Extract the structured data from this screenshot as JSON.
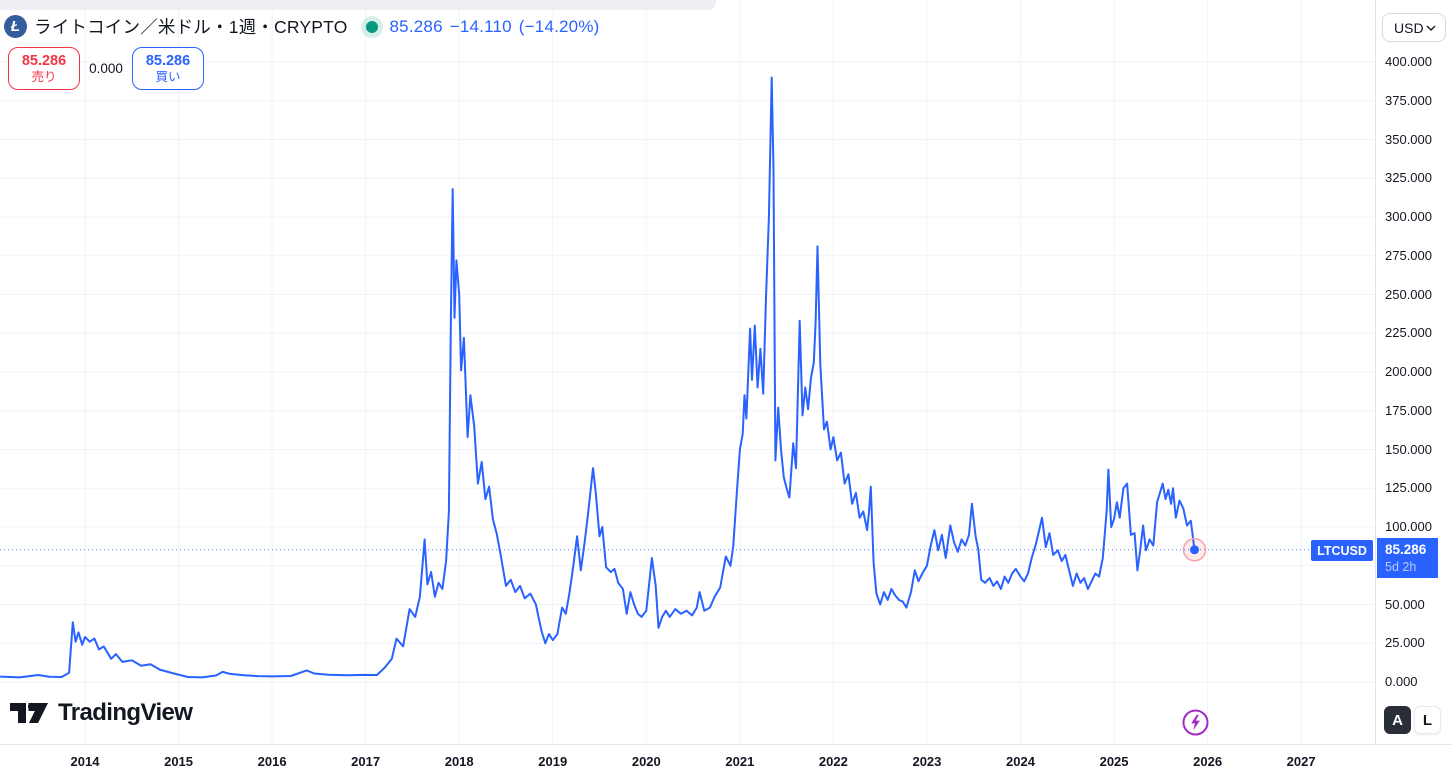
{
  "header": {
    "symbol_title": "ライトコイン／米ドル・1週・CRYPTO",
    "market_status": "open",
    "last_price": "85.286",
    "change": "−14.110",
    "change_pct": "(−14.20%)",
    "sell": {
      "price": "85.286",
      "label": "売り"
    },
    "spread": "0.000",
    "buy": {
      "price": "85.286",
      "label": "買い"
    }
  },
  "price_axis": {
    "currency": "USD",
    "tick_labels": [
      "400.000",
      "375.000",
      "350.000",
      "325.000",
      "300.000",
      "275.000",
      "250.000",
      "225.000",
      "200.000",
      "175.000",
      "150.000",
      "125.000",
      "100.000",
      "50.000",
      "25.000",
      "0.000"
    ],
    "tick_values": [
      400,
      375,
      350,
      325,
      300,
      275,
      250,
      225,
      200,
      175,
      150,
      125,
      100,
      50,
      25,
      0
    ],
    "badge": {
      "price": "85.286",
      "countdown": "5d 2h"
    },
    "auto_label": "A",
    "log_label": "L"
  },
  "time_axis": {
    "years": [
      2014,
      2015,
      2016,
      2017,
      2018,
      2019,
      2020,
      2021,
      2022,
      2023,
      2024,
      2025,
      2026,
      2027
    ]
  },
  "price_line": {
    "label": "LTCUSD"
  },
  "branding": {
    "logo_text": "TradingView",
    "coin_glyph": "Ł"
  },
  "icons": {
    "currency_selector": "chevron-down-icon",
    "market_status": "green-dot",
    "bottom_right": "lightning-icon",
    "axis_corner": "gear-icon",
    "coin": "litecoin-icon"
  },
  "colors": {
    "line": "#2962FF",
    "accent_blue": "#2962FF",
    "sell_red": "#F23645",
    "status_green": "#089981",
    "grid": "#F0F3FA",
    "axis_text": "#131722",
    "separator": "#E0E3EB",
    "lightning_purple": "#A02BC4",
    "litecoin_bg": "#345D9D",
    "marker_halo_stroke": "#F5A3AB"
  },
  "chart_data": {
    "type": "line",
    "title": "ライトコイン／米ドル・1週・CRYPTO",
    "symbol": "LTCUSD",
    "exchange": "CRYPTO",
    "interval": "1週",
    "currency": "USD",
    "current_price": 85.286,
    "change": -14.11,
    "change_pct": -14.2,
    "countdown": "5d 2h",
    "ylim": [
      0,
      412
    ],
    "xlim": [
      2013.09,
      2027.79
    ],
    "y_gridlines": [
      0,
      25,
      50,
      75,
      100,
      125,
      150,
      175,
      200,
      225,
      250,
      275,
      300,
      325,
      350,
      375,
      400
    ],
    "grid": true,
    "legend_position": "top-left",
    "series": [
      {
        "name": "LTCUSD weekly close",
        "points": [
          [
            2013.1,
            3.5
          ],
          [
            2013.3,
            3.0
          ],
          [
            2013.5,
            4.5
          ],
          [
            2013.62,
            3.4
          ],
          [
            2013.75,
            3.2
          ],
          [
            2013.83,
            6.0
          ],
          [
            2013.87,
            38.5
          ],
          [
            2013.9,
            26.0
          ],
          [
            2013.93,
            32.0
          ],
          [
            2013.97,
            24.0
          ],
          [
            2014.0,
            29.0
          ],
          [
            2014.05,
            26.0
          ],
          [
            2014.1,
            28.0
          ],
          [
            2014.15,
            21.0
          ],
          [
            2014.2,
            23.0
          ],
          [
            2014.28,
            15.0
          ],
          [
            2014.33,
            18.0
          ],
          [
            2014.4,
            13.0
          ],
          [
            2014.5,
            14.0
          ],
          [
            2014.6,
            10.5
          ],
          [
            2014.7,
            11.5
          ],
          [
            2014.8,
            8.0
          ],
          [
            2014.95,
            5.5
          ],
          [
            2015.1,
            3.2
          ],
          [
            2015.25,
            3.0
          ],
          [
            2015.4,
            4.2
          ],
          [
            2015.47,
            6.5
          ],
          [
            2015.55,
            5.2
          ],
          [
            2015.7,
            4.4
          ],
          [
            2015.85,
            3.8
          ],
          [
            2016.0,
            3.6
          ],
          [
            2016.2,
            3.9
          ],
          [
            2016.37,
            7.5
          ],
          [
            2016.45,
            5.5
          ],
          [
            2016.6,
            4.7
          ],
          [
            2016.8,
            4.4
          ],
          [
            2017.0,
            4.6
          ],
          [
            2017.12,
            4.5
          ],
          [
            2017.2,
            9.0
          ],
          [
            2017.28,
            15.0
          ],
          [
            2017.33,
            28.0
          ],
          [
            2017.4,
            23.0
          ],
          [
            2017.47,
            47.0
          ],
          [
            2017.53,
            42.0
          ],
          [
            2017.58,
            55.0
          ],
          [
            2017.63,
            92.0
          ],
          [
            2017.66,
            63.0
          ],
          [
            2017.7,
            71.0
          ],
          [
            2017.74,
            55.0
          ],
          [
            2017.78,
            64.0
          ],
          [
            2017.82,
            60.0
          ],
          [
            2017.86,
            78.0
          ],
          [
            2017.89,
            110.0
          ],
          [
            2017.91,
            230.0
          ],
          [
            2017.93,
            318.0
          ],
          [
            2017.95,
            235.0
          ],
          [
            2017.97,
            272.0
          ],
          [
            2018.0,
            250.0
          ],
          [
            2018.02,
            201.0
          ],
          [
            2018.05,
            222.0
          ],
          [
            2018.09,
            158.0
          ],
          [
            2018.12,
            185.0
          ],
          [
            2018.16,
            165.0
          ],
          [
            2018.2,
            128.0
          ],
          [
            2018.24,
            142.0
          ],
          [
            2018.28,
            118.0
          ],
          [
            2018.32,
            126.0
          ],
          [
            2018.36,
            105.0
          ],
          [
            2018.4,
            96.0
          ],
          [
            2018.44,
            83.0
          ],
          [
            2018.5,
            62.0
          ],
          [
            2018.55,
            66.0
          ],
          [
            2018.6,
            58.0
          ],
          [
            2018.65,
            62.0
          ],
          [
            2018.7,
            54.0
          ],
          [
            2018.76,
            57.0
          ],
          [
            2018.82,
            50.0
          ],
          [
            2018.88,
            33.0
          ],
          [
            2018.92,
            25.0
          ],
          [
            2018.96,
            31.0
          ],
          [
            2019.0,
            27.0
          ],
          [
            2019.05,
            31.0
          ],
          [
            2019.1,
            48.0
          ],
          [
            2019.14,
            44.0
          ],
          [
            2019.18,
            58.0
          ],
          [
            2019.22,
            75.0
          ],
          [
            2019.26,
            94.0
          ],
          [
            2019.3,
            72.0
          ],
          [
            2019.34,
            90.0
          ],
          [
            2019.38,
            110.0
          ],
          [
            2019.43,
            138.0
          ],
          [
            2019.46,
            122.0
          ],
          [
            2019.5,
            94.0
          ],
          [
            2019.53,
            100.0
          ],
          [
            2019.57,
            74.0
          ],
          [
            2019.62,
            71.0
          ],
          [
            2019.66,
            73.0
          ],
          [
            2019.7,
            64.0
          ],
          [
            2019.75,
            60.0
          ],
          [
            2019.79,
            44.0
          ],
          [
            2019.83,
            58.0
          ],
          [
            2019.87,
            50.0
          ],
          [
            2019.91,
            44.0
          ],
          [
            2019.95,
            42.0
          ],
          [
            2020.0,
            46.0
          ],
          [
            2020.06,
            80.0
          ],
          [
            2020.1,
            62.0
          ],
          [
            2020.13,
            35.0
          ],
          [
            2020.17,
            42.0
          ],
          [
            2020.21,
            46.0
          ],
          [
            2020.25,
            42.0
          ],
          [
            2020.31,
            47.0
          ],
          [
            2020.37,
            44.0
          ],
          [
            2020.43,
            46.0
          ],
          [
            2020.49,
            43.0
          ],
          [
            2020.54,
            48.0
          ],
          [
            2020.57,
            58.0
          ],
          [
            2020.62,
            46.0
          ],
          [
            2020.68,
            48.0
          ],
          [
            2020.73,
            55.0
          ],
          [
            2020.79,
            61.0
          ],
          [
            2020.85,
            81.0
          ],
          [
            2020.9,
            75.0
          ],
          [
            2020.93,
            88.0
          ],
          [
            2020.97,
            124.0
          ],
          [
            2021.0,
            150.0
          ],
          [
            2021.03,
            160.0
          ],
          [
            2021.05,
            185.0
          ],
          [
            2021.07,
            170.0
          ],
          [
            2021.11,
            228.0
          ],
          [
            2021.13,
            195.0
          ],
          [
            2021.16,
            230.0
          ],
          [
            2021.19,
            190.0
          ],
          [
            2021.22,
            215.0
          ],
          [
            2021.25,
            186.0
          ],
          [
            2021.28,
            248.0
          ],
          [
            2021.31,
            300.0
          ],
          [
            2021.34,
            390.0
          ],
          [
            2021.36,
            330.0
          ],
          [
            2021.38,
            143.0
          ],
          [
            2021.41,
            177.0
          ],
          [
            2021.44,
            150.0
          ],
          [
            2021.47,
            132.0
          ],
          [
            2021.5,
            125.0
          ],
          [
            2021.53,
            119.0
          ],
          [
            2021.57,
            154.0
          ],
          [
            2021.6,
            138.0
          ],
          [
            2021.64,
            233.0
          ],
          [
            2021.67,
            172.0
          ],
          [
            2021.7,
            190.0
          ],
          [
            2021.73,
            176.0
          ],
          [
            2021.76,
            196.0
          ],
          [
            2021.79,
            206.0
          ],
          [
            2021.81,
            232.0
          ],
          [
            2021.83,
            281.0
          ],
          [
            2021.86,
            205.0
          ],
          [
            2021.9,
            163.0
          ],
          [
            2021.93,
            168.0
          ],
          [
            2021.97,
            150.0
          ],
          [
            2022.0,
            158.0
          ],
          [
            2022.04,
            143.0
          ],
          [
            2022.08,
            148.0
          ],
          [
            2022.12,
            128.0
          ],
          [
            2022.16,
            134.0
          ],
          [
            2022.2,
            115.0
          ],
          [
            2022.24,
            122.0
          ],
          [
            2022.28,
            106.0
          ],
          [
            2022.32,
            110.0
          ],
          [
            2022.36,
            98.0
          ],
          [
            2022.38,
            109.0
          ],
          [
            2022.4,
            126.0
          ],
          [
            2022.43,
            77.0
          ],
          [
            2022.46,
            57.0
          ],
          [
            2022.5,
            50.0
          ],
          [
            2022.54,
            58.0
          ],
          [
            2022.58,
            53.0
          ],
          [
            2022.62,
            60.0
          ],
          [
            2022.66,
            56.0
          ],
          [
            2022.7,
            53.0
          ],
          [
            2022.74,
            52.0
          ],
          [
            2022.78,
            48.0
          ],
          [
            2022.83,
            58.0
          ],
          [
            2022.87,
            72.0
          ],
          [
            2022.91,
            65.0
          ],
          [
            2022.95,
            70.0
          ],
          [
            2023.0,
            75.0
          ],
          [
            2023.04,
            88.0
          ],
          [
            2023.08,
            98.0
          ],
          [
            2023.12,
            85.0
          ],
          [
            2023.16,
            95.0
          ],
          [
            2023.2,
            80.0
          ],
          [
            2023.25,
            101.0
          ],
          [
            2023.29,
            90.0
          ],
          [
            2023.33,
            84.0
          ],
          [
            2023.37,
            92.0
          ],
          [
            2023.41,
            88.0
          ],
          [
            2023.45,
            95.0
          ],
          [
            2023.48,
            115.0
          ],
          [
            2023.52,
            94.0
          ],
          [
            2023.55,
            85.0
          ],
          [
            2023.58,
            66.0
          ],
          [
            2023.62,
            64.0
          ],
          [
            2023.67,
            67.0
          ],
          [
            2023.71,
            62.0
          ],
          [
            2023.75,
            65.0
          ],
          [
            2023.79,
            60.0
          ],
          [
            2023.83,
            68.0
          ],
          [
            2023.87,
            64.0
          ],
          [
            2023.91,
            70.0
          ],
          [
            2023.95,
            73.0
          ],
          [
            2024.0,
            68.0
          ],
          [
            2024.04,
            65.0
          ],
          [
            2024.08,
            70.0
          ],
          [
            2024.12,
            80.0
          ],
          [
            2024.16,
            88.0
          ],
          [
            2024.2,
            98.0
          ],
          [
            2024.23,
            106.0
          ],
          [
            2024.27,
            87.0
          ],
          [
            2024.31,
            96.0
          ],
          [
            2024.35,
            82.0
          ],
          [
            2024.4,
            85.0
          ],
          [
            2024.44,
            78.0
          ],
          [
            2024.48,
            82.0
          ],
          [
            2024.52,
            72.0
          ],
          [
            2024.56,
            62.0
          ],
          [
            2024.6,
            70.0
          ],
          [
            2024.64,
            64.0
          ],
          [
            2024.68,
            67.0
          ],
          [
            2024.72,
            60.0
          ],
          [
            2024.76,
            65.0
          ],
          [
            2024.8,
            70.0
          ],
          [
            2024.84,
            68.0
          ],
          [
            2024.88,
            80.0
          ],
          [
            2024.9,
            95.0
          ],
          [
            2024.92,
            110.0
          ],
          [
            2024.94,
            137.0
          ],
          [
            2024.97,
            100.0
          ],
          [
            2025.0,
            105.0
          ],
          [
            2025.03,
            116.0
          ],
          [
            2025.06,
            106.0
          ],
          [
            2025.1,
            125.0
          ],
          [
            2025.14,
            128.0
          ],
          [
            2025.18,
            95.0
          ],
          [
            2025.22,
            96.0
          ],
          [
            2025.25,
            72.0
          ],
          [
            2025.28,
            85.0
          ],
          [
            2025.31,
            101.0
          ],
          [
            2025.34,
            85.0
          ],
          [
            2025.38,
            92.0
          ],
          [
            2025.42,
            88.0
          ],
          [
            2025.46,
            116.0
          ],
          [
            2025.49,
            122.0
          ],
          [
            2025.52,
            128.0
          ],
          [
            2025.55,
            118.0
          ],
          [
            2025.58,
            124.0
          ],
          [
            2025.61,
            115.0
          ],
          [
            2025.63,
            125.0
          ],
          [
            2025.66,
            106.0
          ],
          [
            2025.7,
            117.0
          ],
          [
            2025.74,
            112.0
          ],
          [
            2025.78,
            101.0
          ],
          [
            2025.82,
            104.0
          ],
          [
            2025.86,
            85.286
          ]
        ]
      }
    ]
  }
}
